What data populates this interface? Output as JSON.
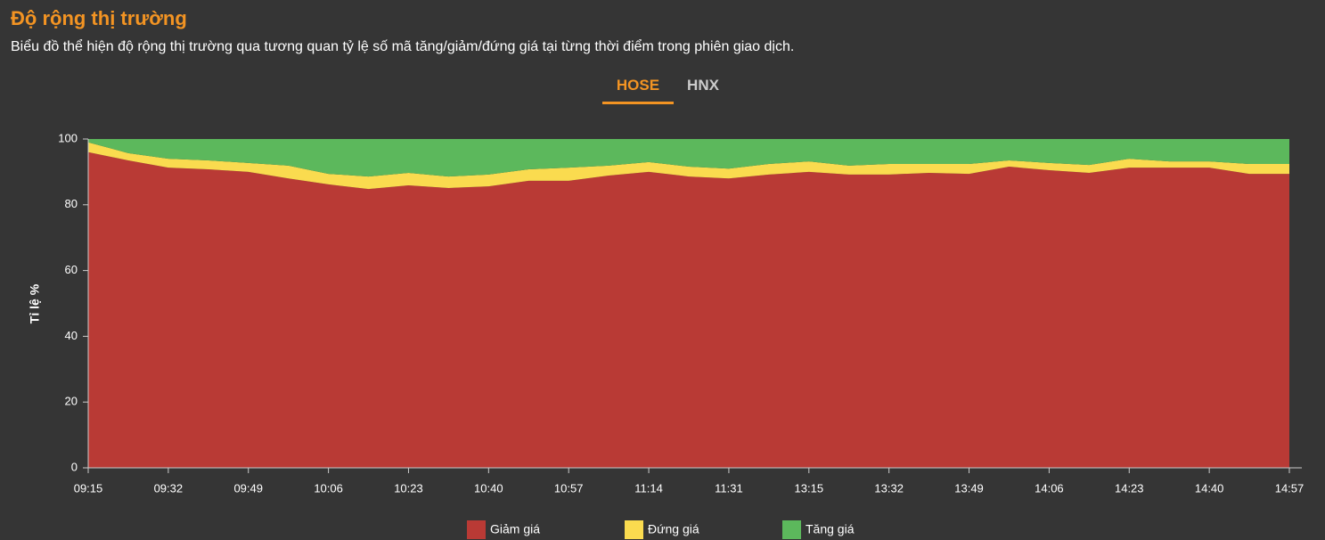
{
  "header": {
    "title": "Độ rộng thị trường",
    "subtitle": "Biểu đồ thể hiện độ rộng thị trường qua tương quan tỷ lệ số mã tăng/giảm/đứng giá tại từng thời điểm trong phiên giao dịch."
  },
  "tabs": [
    "HOSE",
    "HNX"
  ],
  "chart_data": {
    "type": "stacked_area",
    "y_label": "Tỉ lệ %",
    "categories": [
      "09:15",
      null,
      "09:32",
      null,
      "09:49",
      null,
      "10:06",
      null,
      "10:23",
      null,
      "10:40",
      null,
      "10:57",
      null,
      "11:14",
      null,
      "11:31",
      null,
      "13:15",
      null,
      "13:32",
      null,
      "13:49",
      null,
      "14:06",
      null,
      "14:23",
      null,
      "14:40",
      null,
      "14:57"
    ],
    "series": [
      {
        "name": "Giảm giá",
        "color": "#b93a35",
        "values": [
          96,
          93.5,
          91.3,
          90.8,
          90,
          88,
          86.2,
          84.8,
          85.9,
          85.1,
          85.6,
          87.3,
          87.3,
          88.9,
          90,
          88.6,
          88,
          89.2,
          90,
          89.2,
          89.2,
          89.7,
          89.4,
          91.6,
          90.5,
          89.7,
          91.3,
          91.3,
          91.3,
          89.4,
          89.4
        ]
      },
      {
        "name": "Đứng giá",
        "color": "#fadb4f",
        "values": [
          3,
          2.2,
          2.7,
          2.7,
          2.7,
          3.9,
          3.2,
          3.8,
          3.8,
          3.5,
          3.6,
          3.5,
          4,
          3,
          3,
          3,
          3,
          3.2,
          3.2,
          2.7,
          3.2,
          2.7,
          3,
          1.9,
          2.2,
          2.4,
          2.7,
          1.9,
          1.9,
          3,
          3
        ]
      },
      {
        "name": "Tăng giá",
        "color": "#5cb85c",
        "values": [
          1,
          4.3,
          6,
          6.5,
          7.3,
          8.1,
          10.6,
          11.4,
          10.3,
          11.4,
          10.8,
          9.2,
          8.7,
          8.1,
          7,
          8.4,
          9,
          7.6,
          6.8,
          8.1,
          7.6,
          7.6,
          7.6,
          6.5,
          7.3,
          7.9,
          6,
          6.8,
          6.8,
          7.6,
          7.6
        ]
      }
    ],
    "ylim": [
      0,
      100
    ],
    "yticks": [
      0,
      20,
      40,
      60,
      80,
      100
    ],
    "legend": "bottom"
  }
}
